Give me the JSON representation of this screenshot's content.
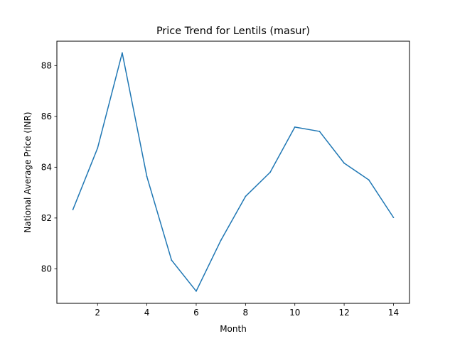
{
  "chart_data": {
    "type": "line",
    "title": "Price Trend for Lentils (masur)",
    "xlabel": "Month",
    "ylabel": "National Average Price (INR)",
    "xlim": [
      0.35,
      14.65
    ],
    "ylim": [
      78.64,
      88.96
    ],
    "xticks": [
      2,
      4,
      6,
      8,
      10,
      12,
      14
    ],
    "yticks": [
      80,
      82,
      84,
      86,
      88
    ],
    "grid": false,
    "series": [
      {
        "color": "#1f77b4",
        "x": [
          1,
          2,
          3,
          4,
          5,
          6,
          7,
          8,
          9,
          10,
          11,
          12,
          13,
          14
        ],
        "y": [
          82.33,
          84.75,
          88.5,
          83.63,
          80.34,
          79.12,
          81.12,
          82.85,
          83.8,
          85.58,
          85.41,
          84.16,
          83.5,
          82.02
        ]
      }
    ]
  }
}
